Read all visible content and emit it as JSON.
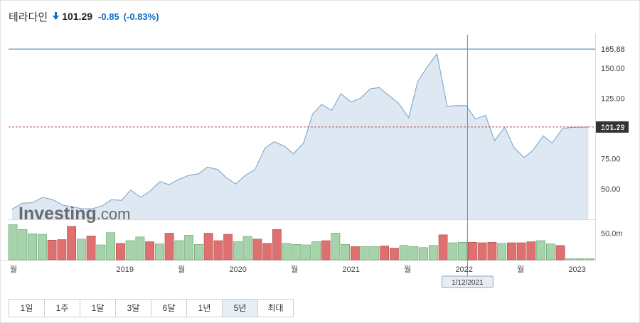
{
  "header": {
    "name": "테라다인",
    "price": "101.29",
    "change": "-0.85",
    "change_pct": "(-0.83%)",
    "direction_icon": "down-arrow-icon",
    "color": "#0e6dc5"
  },
  "range_buttons": [
    {
      "label": "1일",
      "active": false
    },
    {
      "label": "1주",
      "active": false
    },
    {
      "label": "1달",
      "active": false
    },
    {
      "label": "3달",
      "active": false
    },
    {
      "label": "6달",
      "active": false
    },
    {
      "label": "1년",
      "active": false
    },
    {
      "label": "5년",
      "active": true
    },
    {
      "label": "최대",
      "active": false
    }
  ],
  "chart_data": {
    "type": "area",
    "y_ticks": [
      "150.00",
      "125.00",
      "100.00",
      "75.00",
      "50.00"
    ],
    "y_tick_values": [
      150,
      125,
      100,
      75,
      50
    ],
    "ylim": [
      24.7,
      175.4
    ],
    "x_labels": [
      "월",
      "2019",
      "월",
      "2020",
      "월",
      "2021",
      "월",
      "2022",
      "월",
      "2023"
    ],
    "x_label_dates": [
      2018.0,
      2019.0,
      2019.5,
      2020.0,
      2020.5,
      2021.0,
      2021.5,
      2022.0,
      2022.5,
      2023.0
    ],
    "x_range": [
      2017.97,
      2023.16
    ],
    "series": [
      {
        "values": [
          33,
          38,
          38.5,
          43,
          41,
          36.5,
          35,
          33.5,
          33.5,
          36,
          41,
          40.5,
          49,
          43,
          48,
          56,
          53.5,
          58,
          61,
          62.5,
          68,
          66,
          59,
          54,
          61.5,
          66,
          84,
          89,
          85.5,
          79,
          88,
          112,
          120,
          115,
          129,
          122,
          125,
          133,
          134,
          127,
          121,
          109,
          139,
          152,
          162,
          118.5,
          119,
          119,
          108,
          111,
          90,
          101,
          84.5,
          76,
          82,
          94,
          88,
          100,
          101,
          101.29
        ],
        "x": [
          2018.0,
          2018.09,
          2018.18,
          2018.27,
          2018.36,
          2018.45,
          2018.54,
          2018.62,
          2018.71,
          2018.8,
          2018.88,
          2018.97,
          2019.05,
          2019.14,
          2019.22,
          2019.31,
          2019.39,
          2019.48,
          2019.56,
          2019.65,
          2019.73,
          2019.82,
          2019.9,
          2019.98,
          2020.07,
          2020.15,
          2020.24,
          2020.32,
          2020.41,
          2020.49,
          2020.58,
          2020.66,
          2020.74,
          2020.83,
          2020.91,
          2021.0,
          2021.08,
          2021.17,
          2021.25,
          2021.34,
          2021.42,
          2021.51,
          2021.59,
          2021.68,
          2021.76,
          2021.85,
          2021.93,
          2022.02,
          2022.1,
          2022.19,
          2022.27,
          2022.36,
          2022.44,
          2022.53,
          2022.61,
          2022.7,
          2022.78,
          2022.87,
          2022.95,
          2023.1
        ]
      }
    ],
    "volume": {
      "tick_label": "50.0m",
      "tick_value": 50,
      "max": 72,
      "values": [
        66,
        57,
        49,
        48,
        37,
        38,
        63,
        39,
        45,
        28,
        51,
        31,
        36,
        43,
        34,
        30,
        50,
        36,
        46,
        29,
        50,
        36,
        48,
        34,
        44,
        39,
        31,
        57,
        31,
        29,
        28,
        34,
        36,
        50,
        29,
        25,
        25,
        25,
        26,
        22,
        27,
        25,
        23,
        27,
        47,
        32,
        33,
        33,
        32,
        33,
        31,
        32,
        32,
        34,
        36,
        30,
        27,
        2,
        2,
        2
      ],
      "up": [
        true,
        true,
        true,
        true,
        false,
        false,
        false,
        true,
        false,
        true,
        true,
        false,
        true,
        true,
        false,
        true,
        false,
        true,
        true,
        true,
        false,
        false,
        false,
        true,
        true,
        false,
        false,
        false,
        true,
        true,
        true,
        true,
        false,
        true,
        true,
        false,
        true,
        true,
        false,
        false,
        true,
        true,
        true,
        true,
        false,
        true,
        true,
        false,
        false,
        false,
        true,
        false,
        false,
        false,
        true,
        true,
        false,
        true,
        true,
        true
      ]
    },
    "markers": {
      "high_label": "165.88",
      "high_value": 165.88,
      "last_label": "101.29",
      "last_value": 101.29,
      "crosshair_date_label": "1/12/2021",
      "crosshair_x": 2022.03
    },
    "watermark": {
      "text_a": "Investing",
      "text_b": ".com"
    },
    "colors": {
      "line": "#7ea7cc",
      "area": "#dde8f3",
      "up_bar": "#a6d3ac",
      "up_bar_stroke": "#5c9e66",
      "down_bar": "#de7070",
      "down_bar_stroke": "#b44848",
      "high_line": "#3a7ab8",
      "last_line": "#c0504d",
      "last_label_bg": "#333333",
      "crosshair": "#5a8cc0",
      "grid_border": "#d8d8d8"
    }
  }
}
